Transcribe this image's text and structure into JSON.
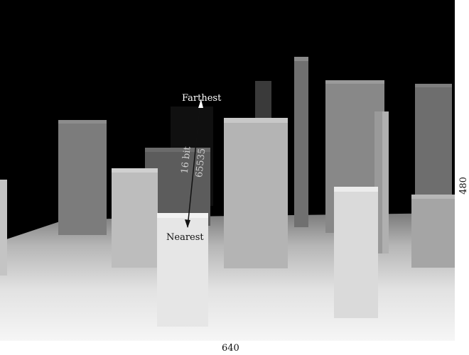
{
  "scene": {
    "far_label": "Farthest",
    "near_label": "Nearest",
    "bit_depth": "16 bit",
    "max_value": "65535"
  },
  "dimensions": {
    "width": "640",
    "height": "480"
  },
  "colors": {
    "background": "#000000",
    "floor_near": "#f4f4f4",
    "floor_far": "#6e6e6e",
    "label_text": "#ffffff",
    "annotation_text": "#111111"
  }
}
